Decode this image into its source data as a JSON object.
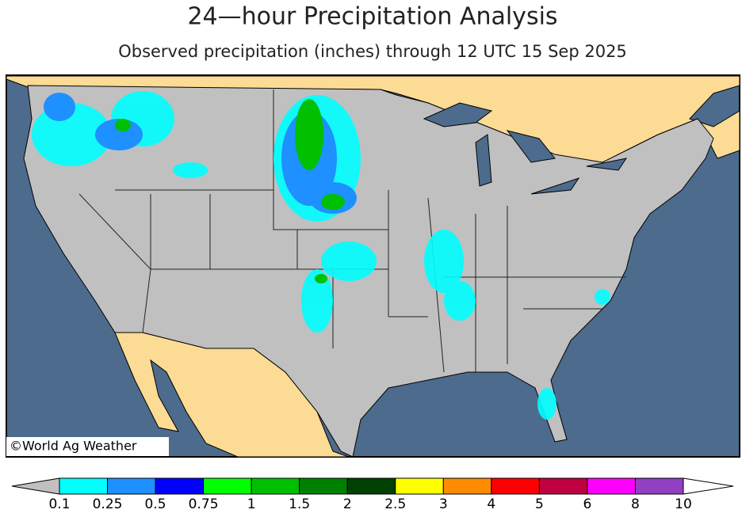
{
  "header": {
    "title": "24—hour Precipitation Analysis",
    "subtitle": "Observed precipitation (inches) through 12 UTC 15 Sep 2025"
  },
  "map": {
    "credit": "©World Ag Weather"
  },
  "legend": {
    "ticks": [
      0.1,
      0.25,
      0.5,
      0.75,
      1,
      1.5,
      2,
      2.5,
      3,
      4,
      5,
      6,
      8,
      10
    ],
    "colors": [
      "#00ffff",
      "#1e90ff",
      "#0000ff",
      "#00ff00",
      "#00c000",
      "#008000",
      "#004000",
      "#ffff00",
      "#ff8c00",
      "#ff0000",
      "#c00040",
      "#ff00ff",
      "#9040c0"
    ],
    "below_color": "#c0c0c0",
    "above_color": "#ffffff"
  }
}
